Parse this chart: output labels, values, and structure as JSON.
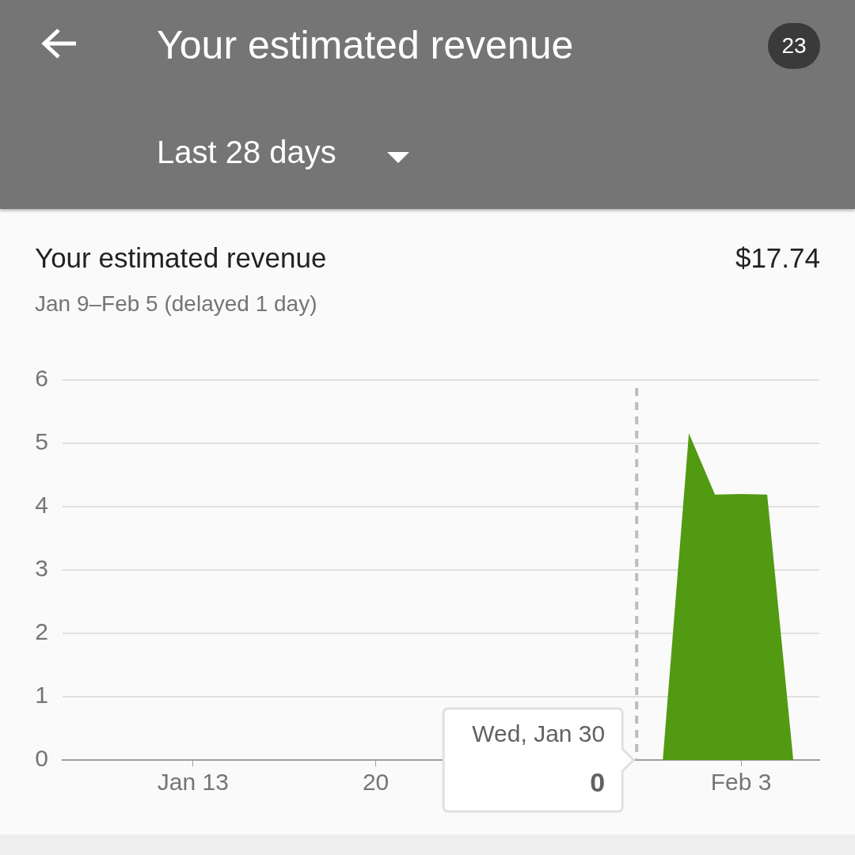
{
  "chart_data": {
    "type": "area",
    "title": "Your estimated revenue",
    "subtitle": "Jan 9–Feb 5 (delayed 1 day)",
    "annotations": [
      "Your estimated revenue",
      "23",
      "Last 28 days",
      "$17.74",
      {
        "text": "Wed, Jan 30",
        "x": "--01-30",
        "y": 0
      },
      {
        "text": "0",
        "x": "--01-30",
        "y": 0
      }
    ],
    "x": [
      "--01-30",
      "--01-31",
      "--02-01",
      "--02-02",
      "--02-03",
      "--02-04",
      "--02-05"
    ],
    "series": [
      {
        "color": "#529a12",
        "values": [
          0,
          0,
          5.16,
          4.19,
          4.2,
          4.19,
          0
        ]
      }
    ],
    "xlim": [
      "--01-08",
      "--02-06"
    ],
    "xticks": [
      {
        "value": "--01-13",
        "label": "Jan 13"
      },
      {
        "value": "--01-20",
        "label": "20"
      },
      {
        "value": "--02-03",
        "label": "Feb 3"
      }
    ],
    "ylim": [
      0,
      6
    ],
    "yticks": [
      0,
      1,
      2,
      3,
      4,
      5,
      6
    ],
    "grid": "y",
    "legend": false,
    "ref_lines": [
      {
        "axis": "x",
        "value": "--01-30",
        "color": "#bdbdbd",
        "line_style": "dashed"
      }
    ]
  }
}
